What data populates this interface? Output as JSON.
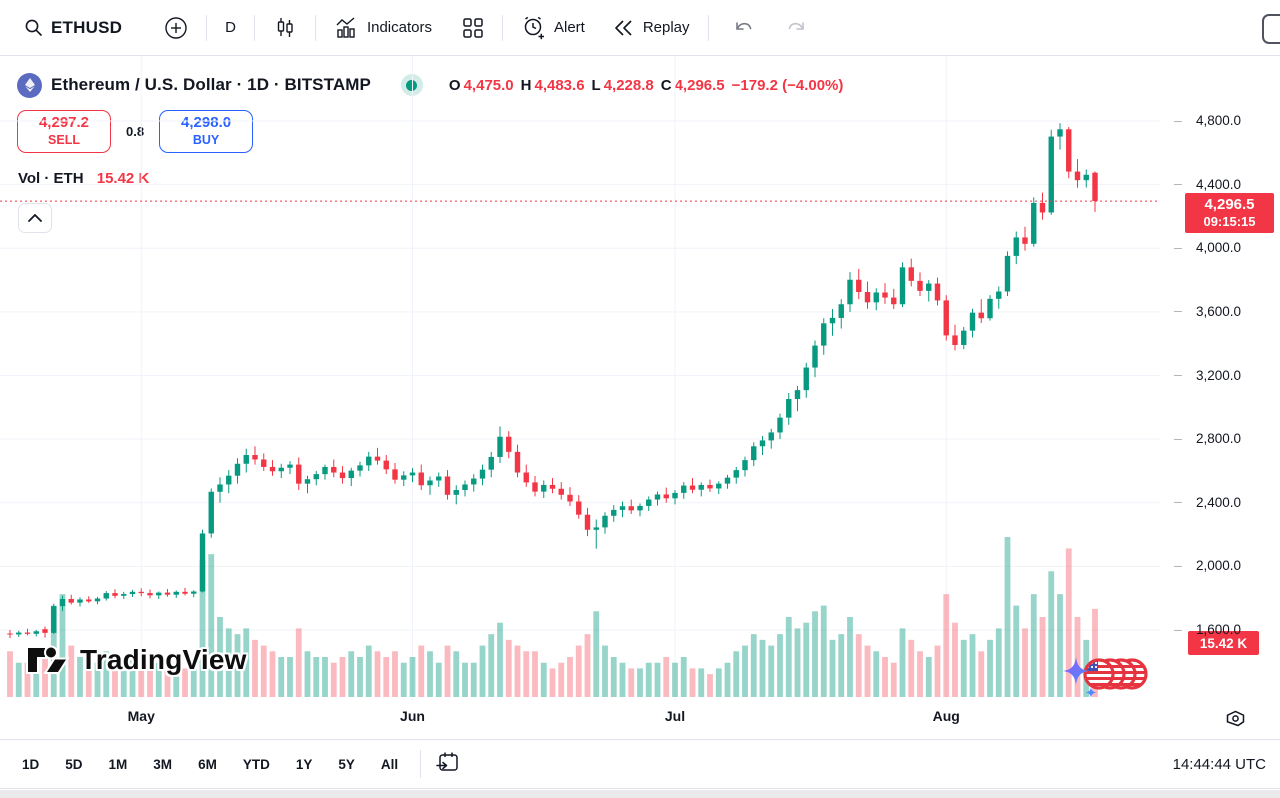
{
  "toolbar": {
    "symbol": "ETHUSD",
    "interval": "D",
    "indicators_label": "Indicators",
    "alert_label": "Alert",
    "replay_label": "Replay"
  },
  "icons": [
    "search-icon",
    "plus-circle-icon",
    "candlestick-style-icon",
    "indicators-icon",
    "layout-grid-icon",
    "alert-clock-icon",
    "replay-rewind-icon",
    "undo-icon",
    "redo-icon",
    "save-layout-partial-icon",
    "eth-logo",
    "market-status-dot",
    "chevron-up-icon",
    "settings-gear-icon",
    "go-to-date-calendar-icon",
    "sparkle-flag-trail"
  ],
  "symbol_info": {
    "title": "Ethereum / U.S. Dollar · 1D · BITSTAMP",
    "ohlc": [
      {
        "k": "O",
        "v": "4,475.0"
      },
      {
        "k": "H",
        "v": "4,483.6"
      },
      {
        "k": "L",
        "v": "4,228.8"
      },
      {
        "k": "C",
        "v": "4,296.5"
      }
    ],
    "change": "−179.2 (−4.00%)"
  },
  "trade_panel": {
    "sell_price": "4,297.2",
    "sell_label": "SELL",
    "spread": "0.8",
    "buy_price": "4,298.0",
    "buy_label": "BUY"
  },
  "volume_row": {
    "label": "Vol · ETH",
    "value": "15.42 K"
  },
  "price_scale": {
    "last_price_badge": {
      "price": "4,296.5",
      "time": "09:15:15"
    },
    "volume_badge": "15.42 K"
  },
  "bottom_toolbar": {
    "ranges": [
      "1D",
      "5D",
      "1M",
      "3M",
      "6M",
      "YTD",
      "1Y",
      "5Y",
      "All"
    ],
    "clock": "14:44:44 UTC"
  },
  "watermark": "TradingView",
  "colors": {
    "up": "#089981",
    "down": "#f23645",
    "buy_blue": "#2962ff",
    "sell_red": "#f23645",
    "badge_red": "#f23645",
    "grid": "#f0f3fa",
    "text": "#131722"
  },
  "chart_data": {
    "type": "candlestick",
    "title": "Ethereum / U.S. Dollar 1D BITSTAMP",
    "legend_position": "none",
    "grid": true,
    "y_axis": {
      "min": 1600,
      "max": 4800,
      "ticks": [
        4800,
        4400,
        4000,
        3600,
        3200,
        2800,
        2400,
        2000,
        1600
      ],
      "tick_labels": [
        "4,800.0",
        "4,400.0",
        "4,000.0",
        "3,600.0",
        "3,200.0",
        "2,800.0",
        "2,400.0",
        "2,000.0",
        "1,600.0"
      ]
    },
    "x_axis": {
      "months": [
        {
          "label": "May",
          "index": 15
        },
        {
          "label": "Jun",
          "index": 46
        },
        {
          "label": "Jul",
          "index": 76
        },
        {
          "label": "Aug",
          "index": 107
        }
      ]
    },
    "last_price": 4296.5,
    "last_volume_k": 15.42,
    "candles_format": [
      "open",
      "high",
      "low",
      "close",
      "volume_k"
    ],
    "candles": [
      [
        1578,
        1600,
        1550,
        1572,
        8
      ],
      [
        1572,
        1595,
        1556,
        1584,
        6
      ],
      [
        1584,
        1608,
        1566,
        1576,
        6
      ],
      [
        1576,
        1601,
        1560,
        1592,
        7
      ],
      [
        1605,
        1622,
        1552,
        1582,
        7
      ],
      [
        1582,
        1765,
        1575,
        1750,
        16
      ],
      [
        1750,
        1815,
        1720,
        1795,
        18
      ],
      [
        1795,
        1822,
        1760,
        1772,
        9
      ],
      [
        1772,
        1805,
        1748,
        1792,
        7
      ],
      [
        1792,
        1812,
        1770,
        1780,
        6
      ],
      [
        1780,
        1808,
        1762,
        1798,
        6
      ],
      [
        1798,
        1845,
        1785,
        1832,
        8
      ],
      [
        1832,
        1856,
        1800,
        1815,
        7
      ],
      [
        1815,
        1840,
        1795,
        1826,
        6
      ],
      [
        1826,
        1852,
        1808,
        1840,
        7
      ],
      [
        1840,
        1862,
        1812,
        1832,
        7
      ],
      [
        1832,
        1855,
        1800,
        1818,
        6
      ],
      [
        1818,
        1842,
        1795,
        1835,
        6
      ],
      [
        1835,
        1858,
        1810,
        1822,
        5
      ],
      [
        1822,
        1848,
        1802,
        1840,
        6
      ],
      [
        1840,
        1865,
        1818,
        1828,
        5
      ],
      [
        1828,
        1850,
        1806,
        1842,
        7
      ],
      [
        1842,
        2230,
        1836,
        2207,
        24
      ],
      [
        2207,
        2490,
        2180,
        2469,
        25
      ],
      [
        2469,
        2560,
        2400,
        2515,
        14
      ],
      [
        2515,
        2605,
        2460,
        2570,
        12
      ],
      [
        2570,
        2680,
        2520,
        2645,
        11
      ],
      [
        2645,
        2740,
        2590,
        2700,
        12
      ],
      [
        2700,
        2755,
        2640,
        2672,
        10
      ],
      [
        2672,
        2710,
        2600,
        2625,
        9
      ],
      [
        2625,
        2668,
        2570,
        2598,
        8
      ],
      [
        2598,
        2645,
        2555,
        2620,
        7
      ],
      [
        2620,
        2662,
        2580,
        2640,
        7
      ],
      [
        2640,
        2685,
        2480,
        2520,
        12
      ],
      [
        2520,
        2570,
        2460,
        2548,
        8
      ],
      [
        2548,
        2600,
        2510,
        2580,
        7
      ],
      [
        2580,
        2640,
        2545,
        2625,
        7
      ],
      [
        2625,
        2672,
        2560,
        2590,
        6
      ],
      [
        2590,
        2630,
        2520,
        2555,
        7
      ],
      [
        2555,
        2620,
        2505,
        2602,
        8
      ],
      [
        2602,
        2658,
        2565,
        2635,
        7
      ],
      [
        2635,
        2720,
        2600,
        2690,
        9
      ],
      [
        2690,
        2745,
        2640,
        2665,
        8
      ],
      [
        2665,
        2700,
        2580,
        2610,
        7
      ],
      [
        2610,
        2650,
        2520,
        2545,
        8
      ],
      [
        2545,
        2598,
        2505,
        2572,
        6
      ],
      [
        2572,
        2618,
        2530,
        2590,
        7
      ],
      [
        2590,
        2640,
        2480,
        2510,
        9
      ],
      [
        2510,
        2565,
        2450,
        2540,
        8
      ],
      [
        2540,
        2590,
        2500,
        2565,
        6
      ],
      [
        2565,
        2605,
        2420,
        2450,
        9
      ],
      [
        2450,
        2510,
        2390,
        2480,
        8
      ],
      [
        2480,
        2540,
        2440,
        2515,
        6
      ],
      [
        2515,
        2580,
        2470,
        2552,
        6
      ],
      [
        2552,
        2640,
        2510,
        2608,
        9
      ],
      [
        2608,
        2720,
        2560,
        2688,
        11
      ],
      [
        2688,
        2880,
        2650,
        2815,
        13
      ],
      [
        2815,
        2850,
        2680,
        2720,
        10
      ],
      [
        2720,
        2765,
        2560,
        2590,
        9
      ],
      [
        2590,
        2640,
        2500,
        2528,
        8
      ],
      [
        2528,
        2568,
        2440,
        2470,
        8
      ],
      [
        2470,
        2540,
        2430,
        2512,
        6
      ],
      [
        2512,
        2555,
        2460,
        2488,
        5
      ],
      [
        2488,
        2530,
        2420,
        2450,
        6
      ],
      [
        2450,
        2498,
        2380,
        2408,
        7
      ],
      [
        2408,
        2448,
        2300,
        2325,
        9
      ],
      [
        2325,
        2368,
        2190,
        2230,
        11
      ],
      [
        2230,
        2295,
        2111,
        2245,
        15
      ],
      [
        2245,
        2340,
        2205,
        2318,
        9
      ],
      [
        2318,
        2385,
        2280,
        2355,
        7
      ],
      [
        2355,
        2408,
        2310,
        2378,
        6
      ],
      [
        2378,
        2420,
        2330,
        2352,
        5
      ],
      [
        2352,
        2395,
        2315,
        2380,
        5
      ],
      [
        2380,
        2440,
        2348,
        2420,
        6
      ],
      [
        2420,
        2470,
        2382,
        2452,
        6
      ],
      [
        2452,
        2495,
        2400,
        2428,
        7
      ],
      [
        2428,
        2480,
        2390,
        2462,
        6
      ],
      [
        2462,
        2530,
        2425,
        2508,
        7
      ],
      [
        2508,
        2555,
        2460,
        2482,
        5
      ],
      [
        2482,
        2528,
        2440,
        2512,
        5
      ],
      [
        2512,
        2545,
        2468,
        2490,
        4
      ],
      [
        2490,
        2535,
        2455,
        2520,
        5
      ],
      [
        2520,
        2575,
        2488,
        2558,
        6
      ],
      [
        2558,
        2625,
        2520,
        2605,
        8
      ],
      [
        2605,
        2690,
        2565,
        2668,
        9
      ],
      [
        2668,
        2780,
        2630,
        2755,
        11
      ],
      [
        2755,
        2820,
        2700,
        2792,
        10
      ],
      [
        2792,
        2865,
        2740,
        2842,
        9
      ],
      [
        2842,
        2960,
        2800,
        2935,
        11
      ],
      [
        2935,
        3090,
        2890,
        3052,
        14
      ],
      [
        3052,
        3135,
        2975,
        3108,
        12
      ],
      [
        3108,
        3280,
        3060,
        3250,
        13
      ],
      [
        3250,
        3420,
        3190,
        3388,
        15
      ],
      [
        3388,
        3560,
        3330,
        3528,
        16
      ],
      [
        3528,
        3618,
        3450,
        3562,
        10
      ],
      [
        3562,
        3680,
        3495,
        3648,
        11
      ],
      [
        3648,
        3850,
        3600,
        3802,
        14
      ],
      [
        3802,
        3870,
        3680,
        3725,
        11
      ],
      [
        3725,
        3790,
        3620,
        3660,
        9
      ],
      [
        3660,
        3748,
        3610,
        3722,
        8
      ],
      [
        3722,
        3780,
        3650,
        3690,
        7
      ],
      [
        3690,
        3745,
        3618,
        3648,
        6
      ],
      [
        3648,
        3912,
        3630,
        3880,
        12
      ],
      [
        3880,
        3935,
        3760,
        3795,
        10
      ],
      [
        3795,
        3848,
        3700,
        3732,
        8
      ],
      [
        3732,
        3800,
        3665,
        3778,
        7
      ],
      [
        3778,
        3815,
        3640,
        3672,
        9
      ],
      [
        3672,
        3705,
        3420,
        3452,
        18
      ],
      [
        3452,
        3520,
        3358,
        3392,
        13
      ],
      [
        3392,
        3505,
        3365,
        3482,
        10
      ],
      [
        3482,
        3620,
        3440,
        3595,
        11
      ],
      [
        3595,
        3680,
        3530,
        3560,
        8
      ],
      [
        3560,
        3705,
        3545,
        3682,
        10
      ],
      [
        3682,
        3760,
        3620,
        3728,
        12
      ],
      [
        3728,
        3980,
        3700,
        3952,
        28
      ],
      [
        3952,
        4105,
        3900,
        4068,
        16
      ],
      [
        4068,
        4135,
        3985,
        4028,
        12
      ],
      [
        4028,
        4320,
        4010,
        4285,
        18
      ],
      [
        4285,
        4350,
        4180,
        4225,
        14
      ],
      [
        4225,
        4745,
        4210,
        4702,
        22
      ],
      [
        4702,
        4787,
        4620,
        4748,
        18
      ],
      [
        4748,
        4762,
        4440,
        4482,
        26
      ],
      [
        4482,
        4560,
        4380,
        4428,
        14
      ],
      [
        4428,
        4495,
        4382,
        4462,
        10
      ],
      [
        4475,
        4483.6,
        4228.8,
        4296.5,
        15.42
      ]
    ]
  }
}
